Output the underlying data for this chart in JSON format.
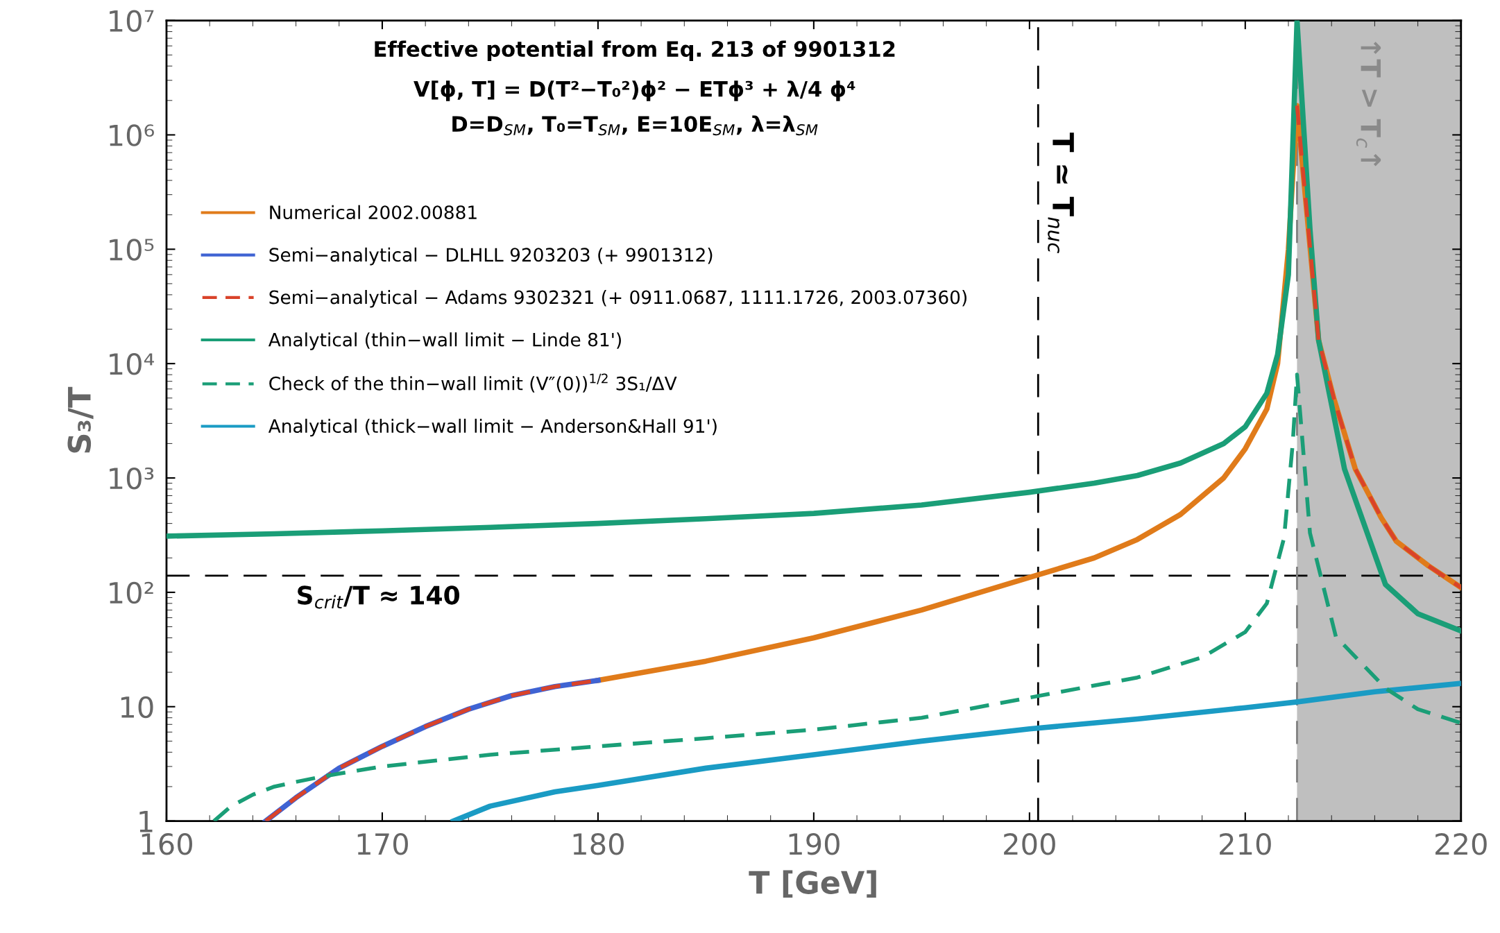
{
  "chart_data": {
    "type": "line",
    "title": "Effective potential from Eq. 213 of 9901312",
    "subtitle": "V[ϕ, T] = D(T²−T₀²)ϕ² − ETϕ³ + λ/4 ϕ⁴\nD=D$_{SM}$, T₀=T$_{SM}$, E=10E$_{SM}$, λ=λ$_{SM}$",
    "xlabel": "T [GeV]",
    "ylabel": "S₃/T",
    "log": "y",
    "grid": false,
    "legend": "top left",
    "xlim": [
      160,
      220
    ],
    "xticks": [
      160,
      170,
      180,
      190,
      200,
      210,
      220
    ],
    "ylim": [
      1,
      10000000
    ],
    "yticks": [
      1,
      10,
      {
        "value": 100,
        "label": "10²"
      },
      {
        "value": 1000,
        "label": "10³"
      },
      {
        "value": 10000,
        "label": "10⁴"
      },
      {
        "value": 100000,
        "label": "10⁵"
      },
      {
        "value": 1000000,
        "label": "10⁶"
      },
      {
        "value": 10000000,
        "label": "10⁷"
      }
    ],
    "series": [
      {
        "name": "Numerical 2002.00881",
        "color": "#e07b1a",
        "line_style": "solid",
        "x": [
          180,
          185,
          190,
          195,
          200,
          203,
          205,
          207,
          209,
          210,
          211,
          211.5,
          212,
          212.4,
          213.4,
          214.1,
          215.1,
          216.3,
          217,
          218.5,
          220
        ],
        "values": [
          17,
          25,
          40,
          70,
          135,
          200,
          290,
          480,
          1000,
          1800,
          4000,
          10000,
          100000,
          1800000,
          16000,
          5000,
          1200,
          450,
          280,
          170,
          110
        ]
      },
      {
        "name": "Semi−analytical − DLHLL 9203203 (+ 9901312)",
        "color": "#3f63d3",
        "line_style": "solid",
        "x": [
          164.6,
          166,
          168,
          170,
          172,
          174,
          176,
          178,
          180
        ],
        "values": [
          1,
          1.6,
          2.9,
          4.5,
          6.7,
          9.5,
          12.5,
          15,
          17
        ]
      },
      {
        "name": "Semi−analytical − Adams 9302321 (+ 0911.0687, 1111.1726, 2003.07360)",
        "color": "#d9432a",
        "line_style": "dashed",
        "x": [
          164.6,
          166,
          168,
          170,
          172,
          174,
          176,
          178,
          180,
          196,
          212.4,
          213.4,
          214.1,
          215.1,
          216.3,
          217,
          218.5,
          220
        ],
        "values": [
          1,
          1.6,
          2.9,
          4.5,
          6.7,
          9.5,
          12.5,
          15,
          17,
          null,
          1800000,
          16000,
          5000,
          1200,
          450,
          280,
          170,
          110
        ]
      },
      {
        "name": "Analytical (thin−wall limit − Linde 81')",
        "color": "#1a9e77",
        "line_style": "solid",
        "x": [
          160,
          165,
          170,
          175,
          180,
          185,
          190,
          195,
          200,
          203,
          205,
          207,
          209,
          210,
          211,
          211.5,
          212,
          212.4,
          213,
          213.4,
          214.6,
          216.5,
          218,
          220
        ],
        "values": [
          310,
          325,
          345,
          370,
          400,
          440,
          490,
          580,
          750,
          900,
          1050,
          1350,
          2000,
          2800,
          5500,
          12000,
          60000,
          10000000,
          150000,
          16000,
          1200,
          117,
          65,
          46
        ]
      },
      {
        "name": "Check of the thin−wall limit (V″(0))$^{1/2}$ 3S₁/ΔV",
        "color": "#1a9e77",
        "line_style": "dashed",
        "x": [
          162.2,
          163,
          164,
          165,
          166,
          167,
          168,
          170,
          175,
          180,
          185,
          190,
          195,
          200,
          205,
          208,
          210,
          211,
          211.8,
          212.2,
          212.4,
          213,
          214.2,
          216.5,
          218,
          220
        ],
        "values": [
          1,
          1.35,
          1.7,
          2.0,
          2.2,
          2.4,
          2.6,
          3.0,
          3.8,
          4.5,
          5.3,
          6.3,
          8,
          12,
          18,
          27,
          45,
          80,
          300,
          2000,
          8000,
          330,
          41,
          14.5,
          9.5,
          7.2
        ]
      },
      {
        "name": "Analytical (thick−wall limit − Anderson&Hall 91')",
        "color": "#1a9bc4",
        "line_style": "solid",
        "x": [
          173.3,
          175,
          178,
          180,
          185,
          190,
          195,
          200,
          205,
          210,
          212.4,
          216,
          220
        ],
        "values": [
          1,
          1.35,
          1.8,
          2.05,
          2.9,
          3.8,
          5,
          6.4,
          7.8,
          9.8,
          11,
          13.5,
          16
        ]
      }
    ],
    "ref_lines": [
      {
        "axis": "y",
        "value": 140,
        "label": "S$_{crit}$/T ≈ 140",
        "color": "#000000",
        "line_style": "dashed"
      },
      {
        "axis": "x",
        "value": 200.4,
        "label": "T ≃ T$_{nuc}$",
        "color": "#000000",
        "line_style": "dashed"
      },
      {
        "axis": "x",
        "value": 212.4,
        "color": "#808080",
        "line_style": "dashed"
      }
    ],
    "bands": [
      {
        "axis": "x",
        "from": 212.4,
        "to": 220,
        "label": "↑T > T$_{c}$↑",
        "color": "#bfbfbf"
      }
    ]
  }
}
